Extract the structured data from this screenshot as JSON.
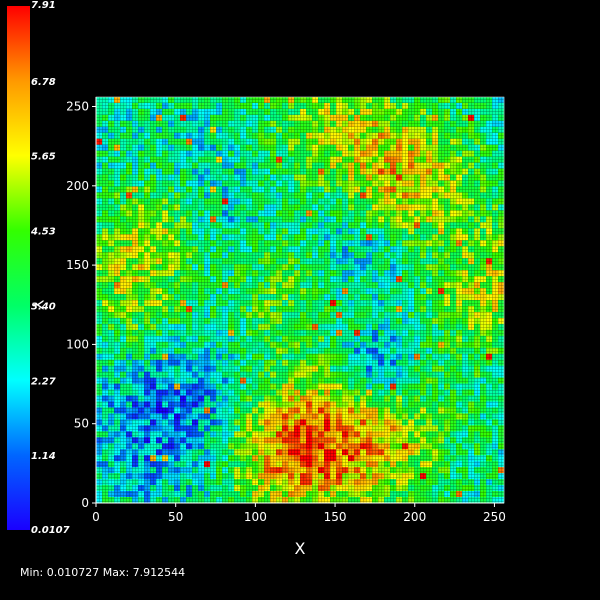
{
  "chart_data": {
    "type": "heatmap",
    "title": "",
    "xlabel": "X",
    "ylabel": "Y",
    "xlim": [
      0,
      256
    ],
    "ylim": [
      0,
      256
    ],
    "x_ticks": [
      0,
      50,
      100,
      150,
      200,
      250
    ],
    "y_ticks": [
      0,
      50,
      100,
      150,
      200,
      250
    ],
    "colorbar": {
      "min": 0.0107,
      "max": 7.91,
      "tick_labels": [
        "0.0107",
        "1.14",
        "2.27",
        "3.40",
        "4.53",
        "5.65",
        "6.78",
        "7.91"
      ],
      "colormap": [
        "#1a00ff",
        "#0066ff",
        "#00ffff",
        "#00ff66",
        "#33ff00",
        "#ffff00",
        "#ff9900",
        "#ff0000"
      ]
    },
    "background": "#000000",
    "grid_overlay": true,
    "grid_color": "#000000"
  },
  "status": {
    "minmax_text": "Min: 0.010727 Max: 7.912544"
  }
}
